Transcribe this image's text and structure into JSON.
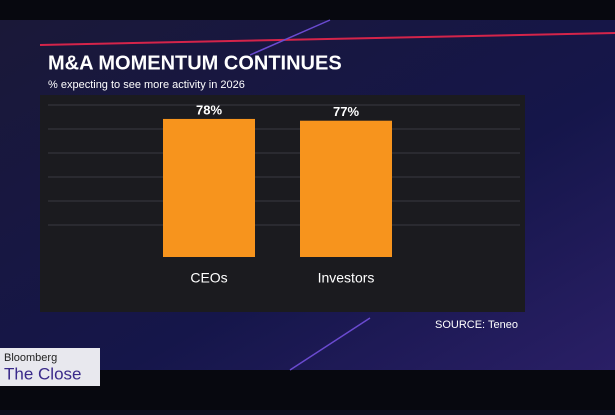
{
  "chart_data": {
    "type": "bar",
    "title": "M&A MOMENTUM CONTINUES",
    "subtitle": "% expecting to see more activity in 2026",
    "categories": [
      "CEOs",
      "Investors"
    ],
    "values": [
      78,
      77
    ],
    "value_labels": [
      "78%",
      "77%"
    ],
    "color": "#f7941d",
    "ylim": [
      0,
      100
    ],
    "source": "SOURCE: Teneo"
  },
  "branding": {
    "name": "Bloomberg",
    "show": "The Close"
  }
}
